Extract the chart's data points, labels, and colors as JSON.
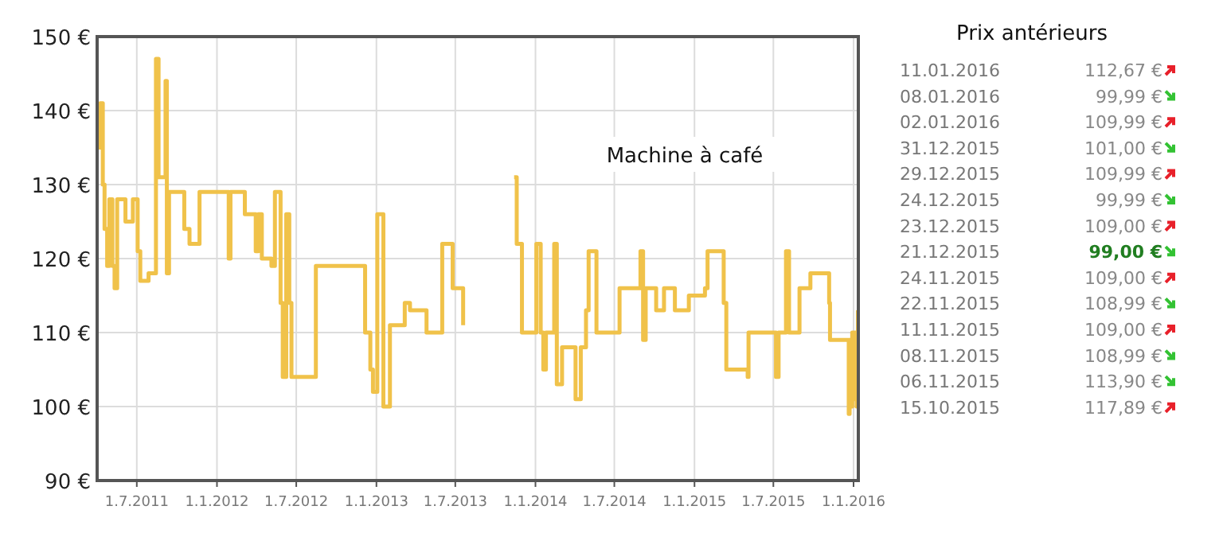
{
  "chart_data": [
    {
      "type": "step",
      "annotations": [
        "Machine à café"
      ],
      "grid": true,
      "line_style": "solid",
      "marker": "none",
      "xlim": [
        "2011-04-01",
        "2016-01-12"
      ],
      "xticks": [
        {
          "value": "2011-07-01",
          "label": "1.7.2011"
        },
        {
          "value": "2012-01-01",
          "label": "1.1.2012"
        },
        {
          "value": "2012-07-01",
          "label": "1.7.2012"
        },
        {
          "value": "2013-01-01",
          "label": "1.1.2013"
        },
        {
          "value": "2013-07-01",
          "label": "1.7.2013"
        },
        {
          "value": "2014-01-01",
          "label": "1.1.2014"
        },
        {
          "value": "2014-07-01",
          "label": "1.7.2014"
        },
        {
          "value": "2015-01-01",
          "label": "1.1.2015"
        },
        {
          "value": "2015-07-01",
          "label": "1.7.2015"
        },
        {
          "value": "2016-01-01",
          "label": "1.1.2016"
        }
      ],
      "ylim": [
        90,
        150
      ],
      "yticks": [
        {
          "value": 90,
          "label": "90 €"
        },
        {
          "value": 100,
          "label": "100 €"
        },
        {
          "value": 110,
          "label": "110 €"
        },
        {
          "value": 120,
          "label": "120 €"
        },
        {
          "value": 130,
          "label": "130 €"
        },
        {
          "value": 140,
          "label": "140 €"
        },
        {
          "value": 150,
          "label": "150 €"
        }
      ],
      "series": [
        {
          "color": "#f0c24a",
          "x": [
            "2011-04-04",
            "2011-04-08",
            "2011-04-14",
            "2011-04-18",
            "2011-04-24",
            "2011-04-29",
            "2011-05-06",
            "2011-05-11",
            "2011-05-17",
            "2011-06-05",
            "2011-06-22",
            "2011-07-03",
            "2011-07-09",
            "2011-07-28",
            "2011-08-14",
            "2011-08-20",
            "2011-09-05",
            "2011-09-08",
            "2011-09-13",
            "2011-10-18",
            "2011-10-30",
            "2011-11-22",
            "2012-01-28",
            "2012-02-01",
            "2012-03-05",
            "2012-03-30",
            "2012-04-05",
            "2012-04-13",
            "2012-05-05",
            "2012-05-13",
            "2012-05-26",
            "2012-05-31",
            "2012-06-08",
            "2012-06-15",
            "2012-06-20",
            "2012-08-15",
            "2012-12-06",
            "2012-12-18",
            "2012-12-24",
            "2013-01-03",
            "2013-01-17",
            "2013-02-01",
            "2013-03-07",
            "2013-03-19",
            "2013-04-26",
            "2013-06-01",
            "2013-06-25",
            "2013-07-19",
            "2013-07-25",
            "2013-11-13",
            "2013-11-19",
            "2013-12-01",
            "2014-01-03",
            "2014-01-13",
            "2014-01-19",
            "2014-01-25",
            "2014-02-13",
            "2014-02-19",
            "2014-03-03",
            "2014-04-03",
            "2014-04-15",
            "2014-04-27",
            "2014-05-03",
            "2014-05-21",
            "2014-07-13",
            "2014-08-30",
            "2014-09-05",
            "2014-09-11",
            "2014-10-05",
            "2014-10-23",
            "2014-11-17",
            "2014-12-19",
            "2015-01-25",
            "2015-01-31",
            "2015-03-09",
            "2015-03-15",
            "2015-05-03",
            "2015-05-05",
            "2015-07-07",
            "2015-07-13",
            "2015-07-30",
            "2015-08-06",
            "2015-08-30",
            "2015-09-24",
            "2015-10-15",
            "2015-11-06",
            "2015-11-08",
            "2015-11-11",
            "2015-11-22",
            "2015-11-24",
            "2015-12-21",
            "2015-12-23",
            "2015-12-24",
            "2015-12-29",
            "2015-12-31",
            "2016-01-02",
            "2016-01-08",
            "2016-01-11"
          ],
          "values": [
            135,
            141,
            130,
            124,
            119,
            128,
            119,
            116,
            128,
            125,
            128,
            121,
            117,
            118,
            147,
            131,
            144,
            118,
            129,
            124,
            122,
            129,
            120,
            129,
            126,
            121,
            126,
            120,
            119,
            129,
            114,
            104,
            126,
            114,
            104,
            119,
            110,
            105,
            102,
            126,
            100,
            111,
            114,
            113,
            110,
            122,
            116,
            111,
            null,
            131,
            122,
            110,
            122,
            110,
            105,
            110,
            122,
            103,
            108,
            101,
            108,
            113,
            121,
            110,
            116,
            121,
            109,
            116,
            113,
            116,
            113,
            115,
            116,
            121,
            114,
            105,
            104,
            110,
            104,
            110,
            121,
            110,
            116,
            118,
            118,
            114,
            109,
            109,
            109,
            109,
            99,
            109,
            100,
            110,
            101,
            110,
            100,
            113
          ]
        }
      ]
    },
    {
      "type": "other",
      "title": "Prix antérieurs",
      "categories": [
        "11.01.2016",
        "08.01.2016",
        "02.01.2016",
        "31.12.2015",
        "29.12.2015",
        "24.12.2015",
        "23.12.2015",
        "21.12.2015",
        "24.11.2015",
        "22.11.2015",
        "11.11.2015",
        "08.11.2015",
        "06.11.2015",
        "15.10.2015"
      ],
      "values": [
        112.67,
        99.99,
        109.99,
        101,
        109.99,
        99.99,
        109,
        99,
        109,
        108.99,
        109,
        108.99,
        113.9,
        117.89
      ],
      "value_labels": [
        "112,67 €",
        "99,99 €",
        "109,99 €",
        "101,00 €",
        "109,99 €",
        "99,99 €",
        "109,00 €",
        "99,00 €",
        "109,00 €",
        "108,99 €",
        "109,00 €",
        "108,99 €",
        "113,90 €",
        "117,89 €"
      ],
      "colors": [
        "#e8202a",
        "#33c233",
        "#e8202a",
        "#33c233",
        "#e8202a",
        "#33c233",
        "#e8202a",
        "#33c233",
        "#e8202a",
        "#33c233",
        "#e8202a",
        "#33c233",
        "#33c233",
        "#e8202a"
      ]
    }
  ]
}
